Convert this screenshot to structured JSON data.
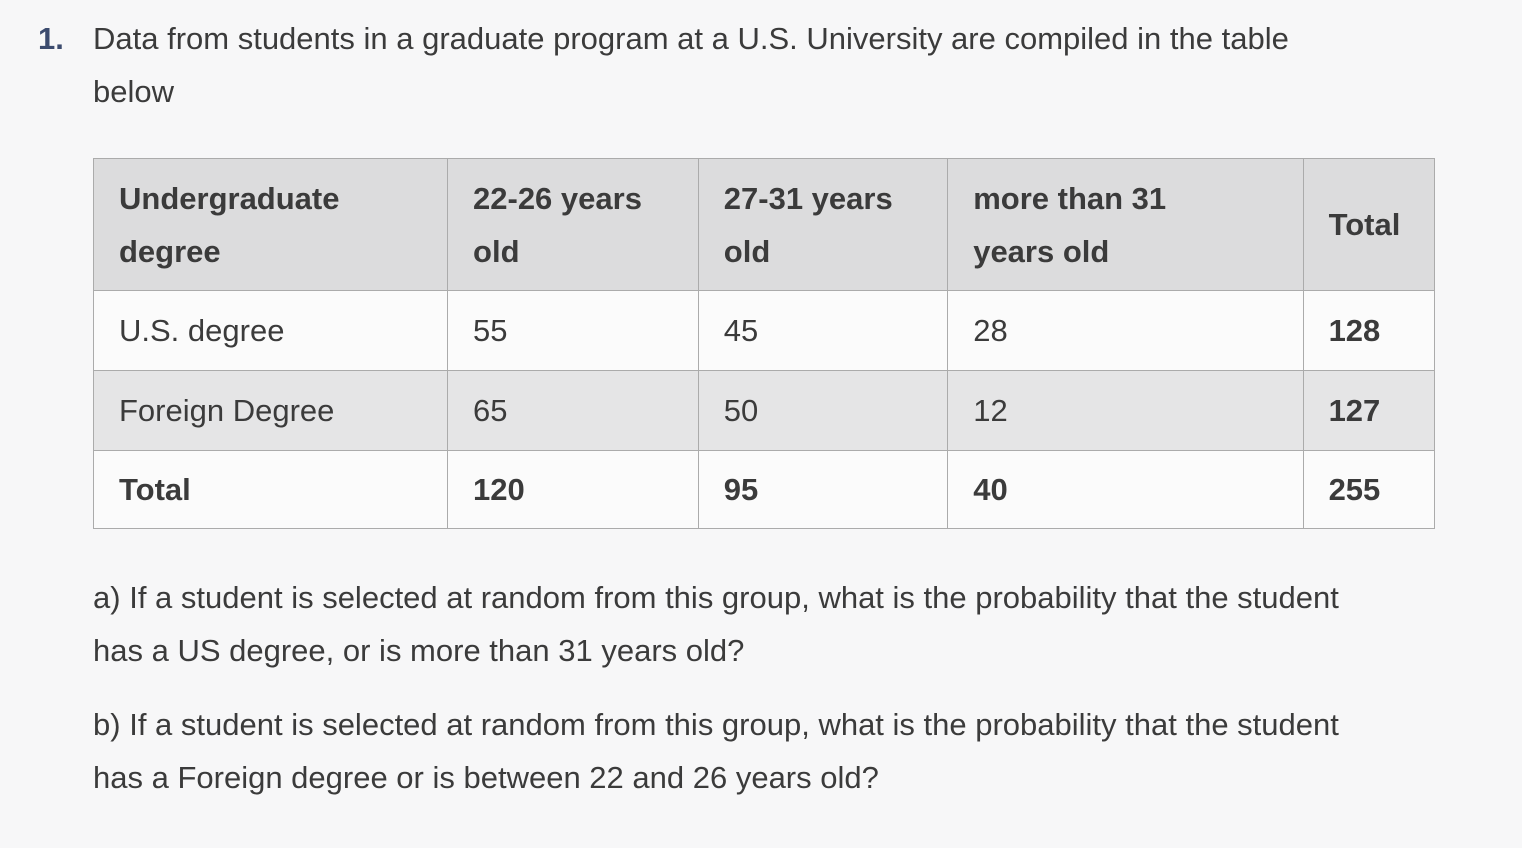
{
  "colors": {
    "page_bg": "#f7f7f8",
    "text": "#3b3b3b",
    "number_accent": "#3c4b6e",
    "table_border": "#ababab",
    "header_bg": "#dcdcdd",
    "row_bg": "#fbfbfb",
    "row_alt_bg": "#e5e5e6"
  },
  "problem": {
    "number": "1.",
    "statement": "Data from students in a graduate program at a U.S. University are compiled in the table below"
  },
  "table": {
    "headers": [
      "Undergraduate degree",
      "22-26 years old",
      "27-31 years old",
      "more than 31 years old",
      "Total"
    ],
    "rows": [
      {
        "label": "U.S. degree",
        "values": [
          "55",
          "45",
          "28",
          "128"
        ]
      },
      {
        "label": "Foreign Degree",
        "values": [
          "65",
          "50",
          "12",
          "127"
        ]
      },
      {
        "label": "Total",
        "values": [
          "120",
          "95",
          "40",
          "255"
        ]
      }
    ]
  },
  "questions": [
    {
      "label": "a)",
      "text": "If a student is selected at random from this group, what is the probability that the student has a US degree, or is more than 31 years old?"
    },
    {
      "label": "b)",
      "text": "If a student is selected at random from this group, what is the probability that the student has a Foreign degree or is between 22 and 26 years old?"
    }
  ]
}
